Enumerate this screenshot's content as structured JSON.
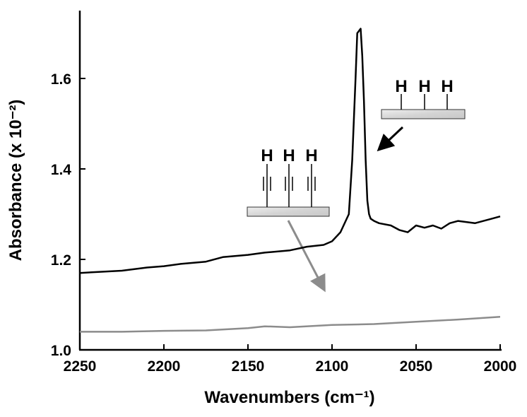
{
  "chart_data": {
    "type": "line",
    "xlabel": "Wavenumbers (cm⁻¹)",
    "ylabel": "Absorbance (x 10⁻²)",
    "xlim": [
      2250,
      2000
    ],
    "ylim": [
      1.0,
      1.75
    ],
    "xticks": [
      2250,
      2200,
      2150,
      2100,
      2050,
      2000
    ],
    "yticks": [
      {
        "value": 1.0,
        "label": "1.0"
      },
      1.2,
      1.4,
      1.6
    ],
    "series": [
      {
        "color": "#000000",
        "x": [
          2250,
          2240,
          2225,
          2210,
          2200,
          2190,
          2175,
          2165,
          2150,
          2140,
          2125,
          2115,
          2105,
          2100,
          2095,
          2090,
          2088,
          2086,
          2085,
          2083,
          2082,
          2081,
          2080,
          2079,
          2078,
          2077,
          2075,
          2072,
          2065,
          2060,
          2055,
          2050,
          2045,
          2040,
          2035,
          2030,
          2025,
          2015,
          2005,
          2000
        ],
        "values": [
          1.17,
          1.172,
          1.175,
          1.182,
          1.185,
          1.19,
          1.195,
          1.205,
          1.21,
          1.215,
          1.22,
          1.228,
          1.232,
          1.24,
          1.26,
          1.3,
          1.42,
          1.6,
          1.7,
          1.71,
          1.65,
          1.55,
          1.42,
          1.33,
          1.3,
          1.29,
          1.285,
          1.28,
          1.275,
          1.265,
          1.26,
          1.275,
          1.27,
          1.275,
          1.268,
          1.28,
          1.285,
          1.28,
          1.29,
          1.295
        ]
      },
      {
        "color": "#8c8c8c",
        "x": [
          2250,
          2225,
          2200,
          2175,
          2150,
          2140,
          2125,
          2100,
          2075,
          2050,
          2025,
          2000
        ],
        "values": [
          1.04,
          1.04,
          1.042,
          1.043,
          1.048,
          1.052,
          1.05,
          1.055,
          1.057,
          1.062,
          1.067,
          1.073
        ]
      }
    ],
    "annotations": [
      "H",
      "H",
      "H",
      "H",
      "H",
      "H"
    ]
  }
}
